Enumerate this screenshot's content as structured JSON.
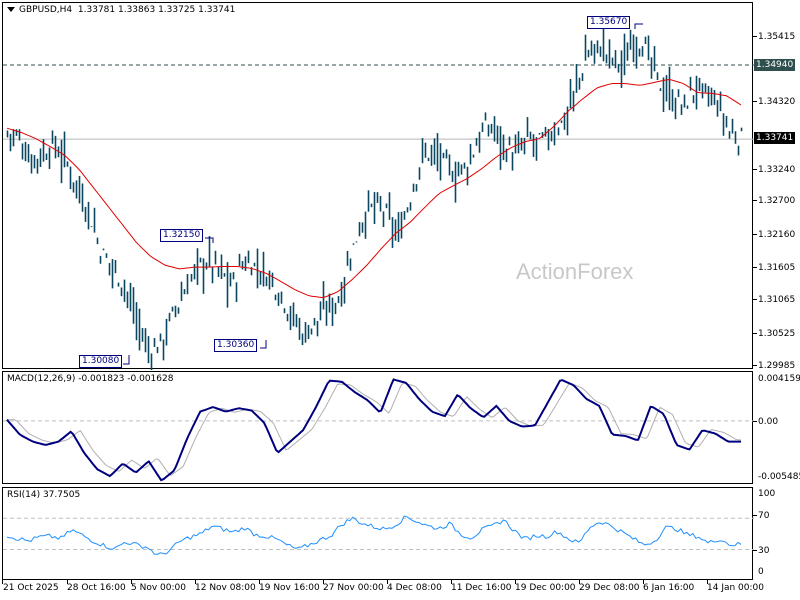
{
  "header": {
    "symbol_title": "GBPUSD,H4",
    "ohlc": "1.33781 1.33863 1.33725 1.33741"
  },
  "watermark": "ActionForex",
  "price_axis": {
    "labels": [
      "1.35415",
      "1.34320",
      "1.33240",
      "1.32700",
      "1.32160",
      "1.31605",
      "1.31065",
      "1.30525",
      "1.29985"
    ],
    "current_price": "1.33741",
    "level_line": "1.34940"
  },
  "macd": {
    "title": "MACD(12,26,9) -0.001823 -0.001628",
    "axis": [
      "0.004159",
      "0.00",
      "-0.005485"
    ]
  },
  "rsi": {
    "title": "RSI(14) 37.7505",
    "axis": [
      "100",
      "70",
      "30",
      "0"
    ]
  },
  "time_axis": [
    "21 Oct 2025",
    "28 Oct 16:00",
    "5 Nov 00:00",
    "12 Nov 08:00",
    "19 Nov 16:00",
    "27 Nov 00:00",
    "4 Dec 08:00",
    "11 Dec 16:00",
    "19 Dec 00:00",
    "29 Dec 08:00",
    "6 Jan 16:00",
    "14 Jan 00:00"
  ],
  "annotations": [
    {
      "label": "1.35670",
      "type": "high"
    },
    {
      "label": "1.32150",
      "type": "swing-high"
    },
    {
      "label": "1.30360",
      "type": "swing-low"
    },
    {
      "label": "1.30080",
      "type": "low"
    }
  ],
  "colors": {
    "bars": "#0b4660",
    "ma": "#e00000",
    "macd": "#00007f",
    "signal": "#b0b0b0",
    "rsi": "#1e90ff",
    "level": "#2f4f4f"
  },
  "chart_data": [
    {
      "type": "ohlc",
      "title": "GBPUSD,H4",
      "ylim": [
        1.29985,
        1.3595
      ],
      "x_ticks": [
        "21 Oct 2025",
        "28 Oct 16:00",
        "5 Nov 00:00",
        "12 Nov 08:00",
        "19 Nov 16:00",
        "27 Nov 00:00",
        "4 Dec 08:00",
        "11 Dec 16:00",
        "19 Dec 00:00",
        "29 Dec 08:00",
        "6 Jan 16:00",
        "14 Jan 00:00"
      ],
      "last": {
        "open": 1.33781,
        "high": 1.33863,
        "low": 1.33725,
        "close": 1.33741
      },
      "key_levels": {
        "high": 1.3567,
        "swing_high": 1.3215,
        "swing_low": 1.3036,
        "low": 1.3008,
        "horizontal_line": 1.3494
      },
      "close_path": [
        1.3385,
        1.3375,
        1.334,
        1.335,
        1.3365,
        1.3335,
        1.3295,
        1.325,
        1.3185,
        1.3165,
        1.313,
        1.3075,
        1.3025,
        1.304,
        1.3085,
        1.3125,
        1.3165,
        1.3175,
        1.3155,
        1.3135,
        1.3175,
        1.3165,
        1.315,
        1.3125,
        1.3085,
        1.3055,
        1.3075,
        1.3095,
        1.3115,
        1.3185,
        1.3245,
        1.3265,
        1.325,
        1.3215,
        1.3275,
        1.3345,
        1.3355,
        1.333,
        1.3315,
        1.3335,
        1.3385,
        1.3395,
        1.3365,
        1.3345,
        1.3375,
        1.3365,
        1.3385,
        1.3405,
        1.3455,
        1.3515,
        1.3525,
        1.3505,
        1.3495,
        1.3545,
        1.3515,
        1.3465,
        1.3445,
        1.3425,
        1.3455,
        1.3445,
        1.343,
        1.3385,
        1.3374
      ],
      "ma_path": [
        1.3392,
        1.3385,
        1.3375,
        1.3362,
        1.3348,
        1.3325,
        1.3295,
        1.3265,
        1.3235,
        1.3205,
        1.3182,
        1.3168,
        1.3162,
        1.3165,
        1.3165,
        1.3166,
        1.3166,
        1.3163,
        1.3155,
        1.3142,
        1.3128,
        1.3118,
        1.3115,
        1.3125,
        1.3145,
        1.3168,
        1.3195,
        1.322,
        1.3238,
        1.3262,
        1.3285,
        1.3298,
        1.331,
        1.3326,
        1.3345,
        1.336,
        1.337,
        1.3375,
        1.3395,
        1.342,
        1.344,
        1.3458,
        1.3465,
        1.3465,
        1.3462,
        1.3467,
        1.3472,
        1.3465,
        1.345,
        1.3449,
        1.3445,
        1.343
      ],
      "series": [
        {
          "name": "MA"
        }
      ]
    },
    {
      "type": "line",
      "title": "MACD(12,26,9)",
      "ylim": [
        -0.005485,
        0.004159
      ],
      "series": [
        {
          "name": "MACD",
          "value": -0.001823,
          "values": [
            0.0001,
            -0.0012,
            -0.0018,
            -0.0021,
            -0.0018,
            -0.0009,
            -0.0028,
            -0.0042,
            -0.0048,
            -0.0037,
            -0.0045,
            -0.0035,
            -0.0052,
            -0.0043,
            -0.0015,
            0.0008,
            0.0012,
            0.0008,
            0.0011,
            0.0009,
            -0.0002,
            -0.0028,
            -0.0018,
            -0.0008,
            0.0012,
            0.0035,
            0.0034,
            0.0025,
            0.0018,
            0.0007,
            0.0036,
            0.0033,
            0.0019,
            0.0008,
            0.0004,
            0.0023,
            0.0011,
            0.0003,
            0.0013,
            0.0,
            -0.0005,
            -0.0004,
            0.0016,
            0.0036,
            0.0031,
            0.0019,
            0.0013,
            -0.0012,
            -0.0013,
            -0.0017,
            0.0013,
            0.0006,
            -0.0021,
            -0.0025,
            -0.0008,
            -0.0011,
            -0.0018,
            -0.0018
          ]
        },
        {
          "name": "Signal",
          "value": -0.001628
        }
      ]
    },
    {
      "type": "line",
      "title": "RSI(14)",
      "ylim": [
        0,
        100
      ],
      "levels": [
        70,
        30
      ],
      "series": [
        {
          "name": "RSI",
          "value": 37.7505,
          "values": [
            48,
            44,
            41,
            46,
            47,
            44,
            55,
            48,
            41,
            35,
            31,
            40,
            36,
            33,
            22,
            28,
            40,
            46,
            50,
            60,
            56,
            52,
            58,
            49,
            47,
            43,
            35,
            30,
            36,
            42,
            48,
            62,
            70,
            63,
            59,
            56,
            62,
            72,
            66,
            60,
            57,
            63,
            50,
            45,
            55,
            60,
            68,
            54,
            43,
            48,
            47,
            53,
            44,
            38,
            59,
            66,
            60,
            52,
            44,
            36,
            41,
            58,
            57,
            49,
            47,
            38,
            44,
            36,
            37
          ]
        }
      ]
    }
  ]
}
